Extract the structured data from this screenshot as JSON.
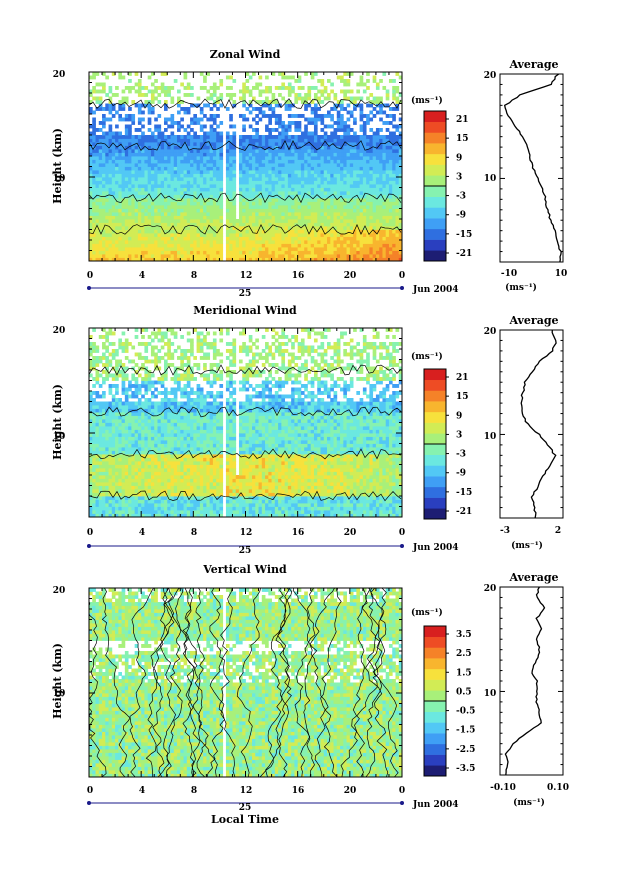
{
  "chart_data": [
    {
      "type": "heatmap",
      "title": "Zonal Wind",
      "ylabel": "Height (km)",
      "y_ticks": [
        10,
        20
      ],
      "ylim": [
        2,
        20
      ],
      "x_ticks": [
        "0",
        "4",
        "8",
        "12",
        "16",
        "20",
        "0"
      ],
      "xlim": [
        0,
        24
      ],
      "date_day": "25",
      "date_label": "Jun 2004",
      "colorbar": {
        "unit_label": "(ms⁻¹)",
        "ticks": [
          "21",
          "15",
          "9",
          "3",
          "-3",
          "-9",
          "-15",
          "-21"
        ],
        "range": [
          -24,
          24
        ]
      },
      "profile": {
        "title": "Average",
        "xlabel": "(ms⁻¹)",
        "x_ticks": [
          "-10",
          "10"
        ],
        "xlim": [
          -15,
          10
        ],
        "height": [
          2,
          3,
          4,
          5,
          6,
          7,
          8,
          9,
          10,
          11,
          12,
          13,
          14,
          15,
          16,
          17,
          18,
          19,
          20
        ],
        "values": [
          9,
          9,
          8,
          7,
          5,
          4,
          3,
          2,
          0,
          -2,
          -3,
          -4,
          -6,
          -9,
          -12,
          -13,
          -7,
          5,
          8
        ]
      }
    },
    {
      "type": "heatmap",
      "title": "Meridional Wind",
      "ylabel": "Height (km)",
      "y_ticks": [
        10,
        20
      ],
      "ylim": [
        2,
        20
      ],
      "x_ticks": [
        "0",
        "4",
        "8",
        "12",
        "16",
        "20",
        "0"
      ],
      "xlim": [
        0,
        24
      ],
      "date_day": "25",
      "date_label": "Jun 2004",
      "colorbar": {
        "unit_label": "(ms⁻¹)",
        "ticks": [
          "21",
          "15",
          "9",
          "3",
          "-3",
          "-9",
          "-15",
          "-21"
        ],
        "range": [
          -24,
          24
        ]
      },
      "profile": {
        "title": "Average",
        "xlabel": "(ms⁻¹)",
        "x_ticks": [
          "-3",
          "2"
        ],
        "xlim": [
          -3,
          2.5
        ],
        "height": [
          2,
          3,
          4,
          5,
          6,
          7,
          8,
          9,
          10,
          11,
          12,
          13,
          14,
          15,
          16,
          17,
          18,
          19,
          20
        ],
        "values": [
          0.1,
          0.0,
          -0.2,
          0.3,
          0.8,
          1.3,
          1.8,
          1.2,
          0.4,
          -0.6,
          -1.1,
          -1.2,
          -1.0,
          -0.8,
          -0.2,
          0.4,
          1.6,
          1.9,
          1.5
        ]
      }
    },
    {
      "type": "heatmap",
      "title": "Vertical Wind",
      "xlabel": "Local Time",
      "ylabel": "Height (km)",
      "y_ticks": [
        10,
        20
      ],
      "ylim": [
        2,
        20
      ],
      "x_ticks": [
        "0",
        "4",
        "8",
        "12",
        "16",
        "20",
        "0"
      ],
      "xlim": [
        0,
        24
      ],
      "date_day": "25",
      "date_label": "Jun 2004",
      "colorbar": {
        "unit_label": "(ms⁻¹)",
        "ticks": [
          "3.5",
          "2.5",
          "1.5",
          "0.5",
          "-0.5",
          "-1.5",
          "-2.5",
          "-3.5"
        ],
        "range": [
          -4,
          4
        ]
      },
      "profile": {
        "title": "Average",
        "xlabel": "(ms⁻¹)",
        "x_ticks": [
          "-0.10",
          "0.10"
        ],
        "xlim": [
          -0.12,
          0.12
        ],
        "height": [
          2,
          3,
          4,
          5,
          6,
          7,
          8,
          9,
          10,
          11,
          12,
          13,
          14,
          15,
          16,
          17,
          18,
          19,
          20
        ],
        "values": [
          -0.1,
          -0.09,
          -0.1,
          -0.07,
          -0.02,
          0.04,
          0.03,
          0.02,
          0.02,
          0.02,
          0.0,
          0.02,
          0.03,
          0.02,
          0.04,
          0.02,
          0.05,
          0.02,
          0.03
        ]
      }
    }
  ],
  "colors": {
    "colormap": [
      "#1d1d73",
      "#2a3fbf",
      "#2f6fe0",
      "#3f9ff5",
      "#52c8f5",
      "#6be8e0",
      "#86f2b0",
      "#a8f07a",
      "#d2ec55",
      "#f7e13c",
      "#f8b52e",
      "#f58228",
      "#ee4c24",
      "#d81f1f"
    ]
  }
}
